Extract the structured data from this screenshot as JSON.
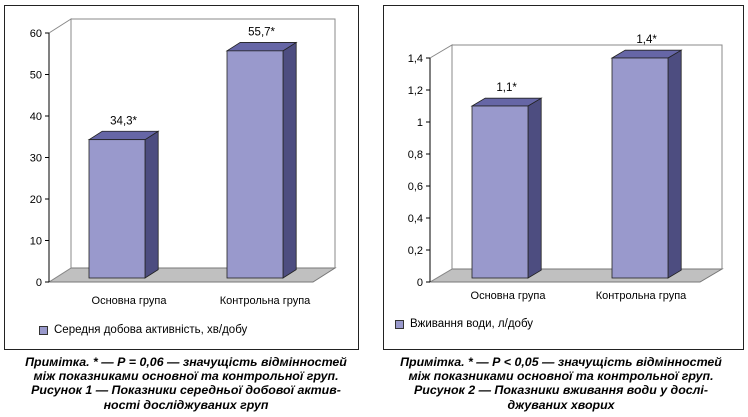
{
  "chart_data": [
    {
      "type": "bar",
      "categories": [
        "Основна група",
        "Контрольна група"
      ],
      "series": [
        {
          "name": "Середня добова активність, хв/добу",
          "values": [
            34.3,
            55.7
          ]
        }
      ],
      "data_labels": [
        "34,3*",
        "55,7*"
      ],
      "yticks": [
        "0",
        "10",
        "20",
        "30",
        "40",
        "50",
        "60"
      ],
      "ylim": [
        0,
        60
      ],
      "grid": false,
      "legend": "bottom-left",
      "bar_color": "#9999cc"
    },
    {
      "type": "bar",
      "categories": [
        "Основна група",
        "Контрольна група"
      ],
      "series": [
        {
          "name": "Вживання води, л/добу",
          "values": [
            1.1,
            1.4
          ]
        }
      ],
      "data_labels": [
        "1,1*",
        "1,4*"
      ],
      "yticks": [
        "0",
        "0,2",
        "0,4",
        "0,6",
        "0,8",
        "1",
        "1,2",
        "1,4"
      ],
      "ylim": [
        0,
        1.4
      ],
      "grid": false,
      "legend": "bottom-left",
      "bar_color": "#9999cc"
    }
  ],
  "captions": [
    {
      "lines": [
        "Примітка. * — Р = 0,06 — значущість відмінностей",
        "між показниками основної та контрольної груп.",
        "Рисунок 1 — Показники середньої добової актив-",
        "ності досліджуваних груп"
      ]
    },
    {
      "lines": [
        "Примітка. * — Р < 0,05 — значущість відмінностей",
        "між показниками основної та контрольної груп.",
        "Рисунок 2 — Показники вживання води у дослі-",
        "джуваних хворих"
      ]
    }
  ]
}
